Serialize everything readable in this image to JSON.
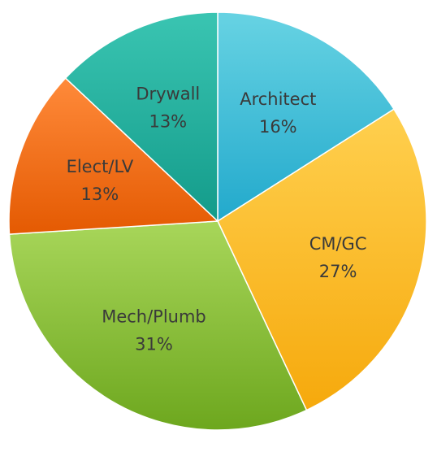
{
  "chart_data": {
    "type": "pie",
    "title": "",
    "start_angle_deg": -90,
    "direction": "clockwise",
    "slices": [
      {
        "label": "Architect",
        "value": 16,
        "display": "16%",
        "color_top": "#67d3e3",
        "color_bottom": "#22a9cc"
      },
      {
        "label": "CM/GC",
        "value": 27,
        "display": "27%",
        "color_top": "#ffd04f",
        "color_bottom": "#f6a90c"
      },
      {
        "label": "Mech/Plumb",
        "value": 31,
        "display": "31%",
        "color_top": "#a8d65a",
        "color_bottom": "#6da71e"
      },
      {
        "label": "Elect/LV",
        "value": 13,
        "display": "13%",
        "color_top": "#ff8a3a",
        "color_bottom": "#e45a02"
      },
      {
        "label": "Drywall",
        "value": 13,
        "display": "13%",
        "color_top": "#3ac5b2",
        "color_bottom": "#139b8a"
      }
    ],
    "legend": "none",
    "data_labels": "inside"
  }
}
